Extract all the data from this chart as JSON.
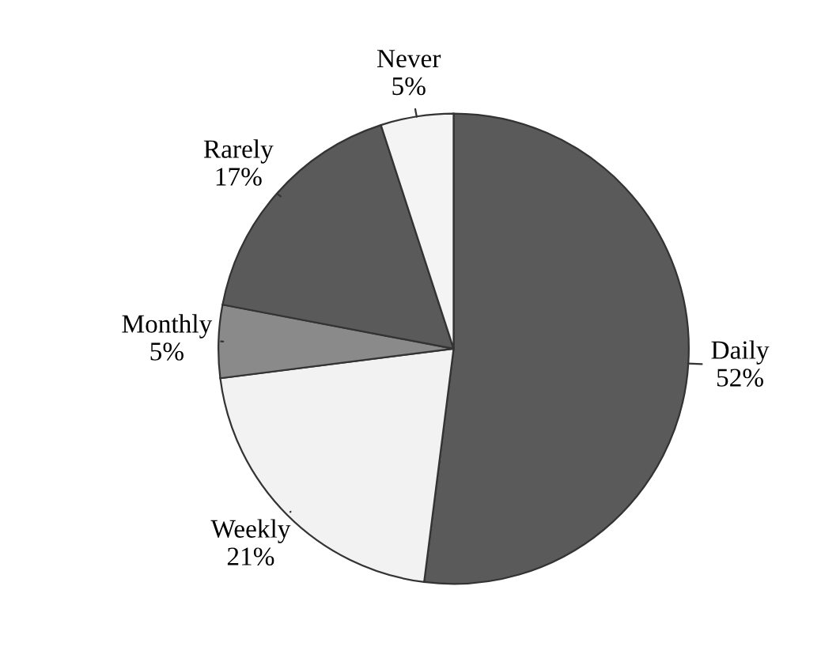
{
  "chart_data": {
    "type": "pie",
    "categories": [
      "Daily",
      "Weekly",
      "Monthly",
      "Rarely",
      "Never"
    ],
    "values": [
      52,
      21,
      5,
      17,
      5
    ],
    "value_labels": [
      "52%",
      "21%",
      "5%",
      "17%",
      "5%"
    ],
    "colors": [
      "#5a5a5a",
      "#f2f2f2",
      "#8a8a8a",
      "#5a5a5a",
      "#f4f4f4"
    ],
    "legend": false
  }
}
